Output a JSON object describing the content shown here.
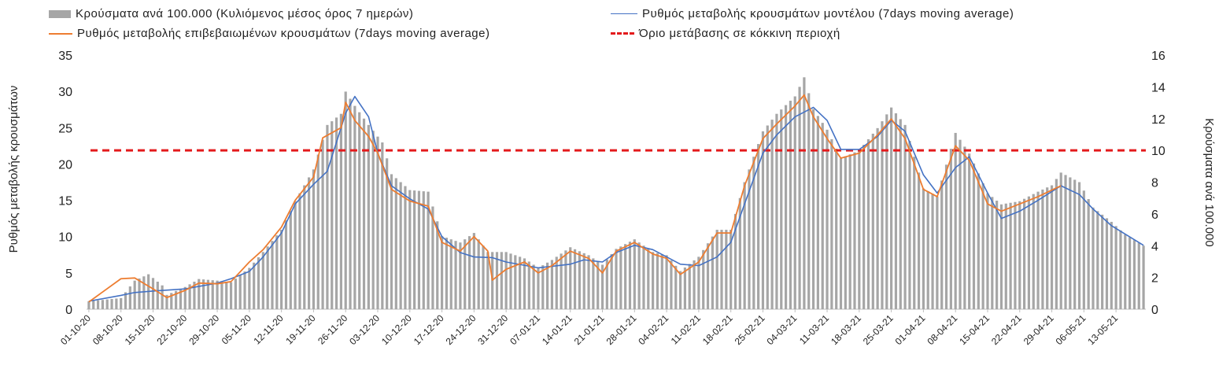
{
  "chart_data": {
    "type": "bar",
    "legend": {
      "placement": "top",
      "entries": [
        {
          "key": "bars",
          "label": "Κρούσματα ανά 100.000 (Κυλιόμενος μέσος όρος 7 ημερών)"
        },
        {
          "key": "model",
          "label": "Ρυθμός μεταβολής κρουσμάτων μοντέλου (7days moving average)"
        },
        {
          "key": "confirmed",
          "label": "Ρυθμός μεταβολής επιβεβαιωμένων κρουσμάτων (7days moving average)"
        },
        {
          "key": "threshold",
          "label": "Όριο μετάβασης σε κόκκινη περιοχή"
        }
      ]
    },
    "xlabel": "",
    "ylabel_left": "Ρυθμός μεταβολής κρουσμάτων",
    "ylabel_right": "Κρούσματα ανά 100.000",
    "ylim_left": [
      0,
      35
    ],
    "ylim_right": [
      0,
      16
    ],
    "yticks_left": [
      0,
      5,
      10,
      15,
      20,
      25,
      30,
      35
    ],
    "yticks_right": [
      0,
      2,
      4,
      6,
      8,
      10,
      12,
      14,
      16
    ],
    "grid": false,
    "x_start": "01-10-20",
    "x_end": "19-05-21",
    "x_tick_labels": [
      "01-10-20",
      "08-10-20",
      "15-10-20",
      "22-10-20",
      "29-10-20",
      "05-11-20",
      "12-11-20",
      "19-11-20",
      "26-11-20",
      "03-12-20",
      "10-12-20",
      "17-12-20",
      "24-12-20",
      "31-12-20",
      "07-01-21",
      "14-01-21",
      "21-01-21",
      "28-01-21",
      "04-02-21",
      "11-02-21",
      "18-02-21",
      "25-02-21",
      "04-03-21",
      "11-03-21",
      "18-03-21",
      "25-03-21",
      "01-04-21",
      "08-04-21",
      "15-04-21",
      "22-04-21",
      "29-04-21",
      "06-05-21",
      "13-05-21"
    ],
    "threshold": {
      "axis": "right",
      "value": 10
    },
    "colors": {
      "bars": "#a6a6a6",
      "model": "#4472c4",
      "confirmed": "#ed7d31",
      "threshold": "#e31a1c"
    },
    "series": [
      {
        "key": "bars",
        "axis": "right",
        "type": "bar",
        "points": [
          [
            "01-10-20",
            0.5
          ],
          [
            "08-10-20",
            0.7
          ],
          [
            "11-10-20",
            1.8
          ],
          [
            "14-10-20",
            2.2
          ],
          [
            "17-10-20",
            1.5
          ],
          [
            "18-10-20",
            0.9
          ],
          [
            "22-10-20",
            1.4
          ],
          [
            "25-10-20",
            1.9
          ],
          [
            "29-10-20",
            1.8
          ],
          [
            "01-11-20",
            1.7
          ],
          [
            "05-11-20",
            2.6
          ],
          [
            "08-11-20",
            3.6
          ],
          [
            "12-11-20",
            5.0
          ],
          [
            "15-11-20",
            6.8
          ],
          [
            "19-11-20",
            8.8
          ],
          [
            "22-11-20",
            11.6
          ],
          [
            "25-11-20",
            12.3
          ],
          [
            "26-11-20",
            13.7
          ],
          [
            "28-11-20",
            12.8
          ],
          [
            "01-12-20",
            11.6
          ],
          [
            "04-12-20",
            10.5
          ],
          [
            "06-12-20",
            8.5
          ],
          [
            "10-12-20",
            7.5
          ],
          [
            "14-12-20",
            7.4
          ],
          [
            "17-12-20",
            4.6
          ],
          [
            "21-12-20",
            4.2
          ],
          [
            "24-12-20",
            4.8
          ],
          [
            "27-12-20",
            3.6
          ],
          [
            "31-12-20",
            3.6
          ],
          [
            "04-01-21",
            3.2
          ],
          [
            "07-01-21",
            2.6
          ],
          [
            "10-01-21",
            3.1
          ],
          [
            "14-01-21",
            3.9
          ],
          [
            "18-01-21",
            3.4
          ],
          [
            "21-01-21",
            2.8
          ],
          [
            "24-01-21",
            3.8
          ],
          [
            "28-01-21",
            4.4
          ],
          [
            "01-02-21",
            3.6
          ],
          [
            "04-02-21",
            3.4
          ],
          [
            "07-02-21",
            2.4
          ],
          [
            "11-02-21",
            3.3
          ],
          [
            "15-02-21",
            5.0
          ],
          [
            "18-02-21",
            5.0
          ],
          [
            "21-02-21",
            8.0
          ],
          [
            "25-02-21",
            11.2
          ],
          [
            "28-02-21",
            12.3
          ],
          [
            "04-03-21",
            13.4
          ],
          [
            "06-03-21",
            14.6
          ],
          [
            "08-03-21",
            12.6
          ],
          [
            "11-03-21",
            11.3
          ],
          [
            "14-03-21",
            9.5
          ],
          [
            "18-03-21",
            10.0
          ],
          [
            "22-03-21",
            11.4
          ],
          [
            "25-03-21",
            12.7
          ],
          [
            "28-03-21",
            11.6
          ],
          [
            "01-04-21",
            7.6
          ],
          [
            "04-04-21",
            7.1
          ],
          [
            "08-04-21",
            11.1
          ],
          [
            "11-04-21",
            9.8
          ],
          [
            "15-04-21",
            7.3
          ],
          [
            "18-04-21",
            6.6
          ],
          [
            "22-04-21",
            6.8
          ],
          [
            "26-04-21",
            7.4
          ],
          [
            "29-04-21",
            7.8
          ],
          [
            "01-05-21",
            8.6
          ],
          [
            "05-05-21",
            8.0
          ],
          [
            "08-05-21",
            6.4
          ],
          [
            "12-05-21",
            5.5
          ],
          [
            "15-05-21",
            4.7
          ],
          [
            "19-05-21",
            4.0
          ]
        ]
      },
      {
        "key": "model",
        "axis": "left",
        "type": "line",
        "points": [
          [
            "01-10-20",
            1.1
          ],
          [
            "08-10-20",
            1.9
          ],
          [
            "11-10-20",
            2.3
          ],
          [
            "15-10-20",
            2.5
          ],
          [
            "22-10-20",
            2.8
          ],
          [
            "29-10-20",
            3.6
          ],
          [
            "01-11-20",
            4.2
          ],
          [
            "05-11-20",
            5.2
          ],
          [
            "08-11-20",
            7.2
          ],
          [
            "12-11-20",
            10.5
          ],
          [
            "15-11-20",
            14.5
          ],
          [
            "19-11-20",
            17.2
          ],
          [
            "22-11-20",
            19.0
          ],
          [
            "26-11-20",
            27.0
          ],
          [
            "28-11-20",
            29.3
          ],
          [
            "01-12-20",
            26.5
          ],
          [
            "03-12-20",
            21.5
          ],
          [
            "06-12-20",
            17.0
          ],
          [
            "10-12-20",
            15.2
          ],
          [
            "14-12-20",
            13.8
          ],
          [
            "17-12-20",
            10.0
          ],
          [
            "21-12-20",
            7.8
          ],
          [
            "24-12-20",
            7.2
          ],
          [
            "28-12-20",
            7.1
          ],
          [
            "31-12-20",
            6.5
          ],
          [
            "07-01-21",
            5.7
          ],
          [
            "14-01-21",
            6.2
          ],
          [
            "17-01-21",
            6.8
          ],
          [
            "21-01-21",
            6.5
          ],
          [
            "24-01-21",
            7.8
          ],
          [
            "28-01-21",
            8.8
          ],
          [
            "01-02-21",
            8.2
          ],
          [
            "04-02-21",
            7.2
          ],
          [
            "07-02-21",
            6.2
          ],
          [
            "11-02-21",
            6.0
          ],
          [
            "15-02-21",
            7.2
          ],
          [
            "18-02-21",
            9.2
          ],
          [
            "21-02-21",
            14.5
          ],
          [
            "25-02-21",
            21.5
          ],
          [
            "28-02-21",
            24.0
          ],
          [
            "04-03-21",
            26.5
          ],
          [
            "08-03-21",
            27.8
          ],
          [
            "11-03-21",
            26.0
          ],
          [
            "14-03-21",
            22.0
          ],
          [
            "18-03-21",
            22.0
          ],
          [
            "22-03-21",
            23.8
          ],
          [
            "25-03-21",
            26.0
          ],
          [
            "28-03-21",
            24.5
          ],
          [
            "01-04-21",
            18.5
          ],
          [
            "04-04-21",
            16.0
          ],
          [
            "08-04-21",
            19.5
          ],
          [
            "11-04-21",
            21.0
          ],
          [
            "15-04-21",
            16.0
          ],
          [
            "18-04-21",
            12.5
          ],
          [
            "22-04-21",
            13.5
          ],
          [
            "26-04-21",
            15.0
          ],
          [
            "01-05-21",
            17.0
          ],
          [
            "05-05-21",
            15.8
          ],
          [
            "08-05-21",
            13.8
          ],
          [
            "12-05-21",
            11.5
          ],
          [
            "19-05-21",
            8.8
          ]
        ]
      },
      {
        "key": "confirmed",
        "axis": "left",
        "type": "line",
        "points": [
          [
            "01-10-20",
            1.0
          ],
          [
            "08-10-20",
            4.2
          ],
          [
            "11-10-20",
            4.3
          ],
          [
            "15-10-20",
            2.8
          ],
          [
            "18-10-20",
            1.6
          ],
          [
            "22-10-20",
            2.6
          ],
          [
            "25-10-20",
            3.6
          ],
          [
            "29-10-20",
            3.5
          ],
          [
            "01-11-20",
            3.8
          ],
          [
            "05-11-20",
            6.5
          ],
          [
            "08-11-20",
            8.2
          ],
          [
            "12-11-20",
            11.3
          ],
          [
            "15-11-20",
            15.0
          ],
          [
            "19-11-20",
            18.2
          ],
          [
            "21-11-20",
            23.6
          ],
          [
            "25-11-20",
            25.0
          ],
          [
            "26-11-20",
            28.5
          ],
          [
            "28-11-20",
            26.0
          ],
          [
            "01-12-20",
            23.8
          ],
          [
            "03-12-20",
            21.5
          ],
          [
            "06-12-20",
            16.5
          ],
          [
            "10-12-20",
            14.9
          ],
          [
            "14-12-20",
            14.2
          ],
          [
            "17-12-20",
            9.2
          ],
          [
            "21-12-20",
            8.0
          ],
          [
            "24-12-20",
            10.0
          ],
          [
            "27-12-20",
            8.0
          ],
          [
            "28-12-20",
            4.0
          ],
          [
            "31-12-20",
            5.5
          ],
          [
            "04-01-21",
            6.5
          ],
          [
            "07-01-21",
            5.0
          ],
          [
            "10-01-21",
            6.0
          ],
          [
            "14-01-21",
            8.0
          ],
          [
            "18-01-21",
            7.0
          ],
          [
            "21-01-21",
            5.0
          ],
          [
            "24-01-21",
            8.0
          ],
          [
            "28-01-21",
            9.2
          ],
          [
            "01-02-21",
            7.6
          ],
          [
            "04-02-21",
            7.0
          ],
          [
            "07-02-21",
            4.8
          ],
          [
            "11-02-21",
            6.5
          ],
          [
            "15-02-21",
            10.5
          ],
          [
            "18-02-21",
            10.5
          ],
          [
            "21-02-21",
            17.0
          ],
          [
            "25-02-21",
            23.5
          ],
          [
            "28-02-21",
            25.5
          ],
          [
            "04-03-21",
            28.0
          ],
          [
            "06-03-21",
            29.5
          ],
          [
            "08-03-21",
            26.5
          ],
          [
            "11-03-21",
            23.5
          ],
          [
            "14-03-21",
            20.8
          ],
          [
            "18-03-21",
            21.5
          ],
          [
            "22-03-21",
            24.0
          ],
          [
            "25-03-21",
            26.2
          ],
          [
            "28-03-21",
            23.5
          ],
          [
            "01-04-21",
            16.5
          ],
          [
            "04-04-21",
            15.5
          ],
          [
            "08-04-21",
            22.5
          ],
          [
            "11-04-21",
            20.5
          ],
          [
            "15-04-21",
            14.5
          ],
          [
            "18-04-21",
            13.5
          ],
          [
            "22-04-21",
            14.5
          ],
          [
            "26-04-21",
            15.5
          ],
          [
            "01-05-21",
            17.0
          ]
        ]
      }
    ]
  }
}
